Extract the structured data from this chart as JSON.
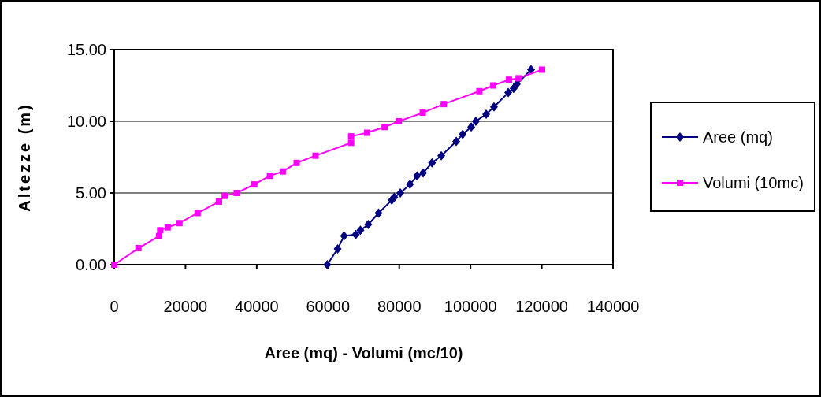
{
  "chart_data": {
    "type": "line",
    "xlabel": "Aree (mq) - Volumi (mc/10)",
    "ylabel": "Altezze (m)",
    "xlim": [
      0,
      140000
    ],
    "xticks": [
      0,
      20000,
      40000,
      60000,
      80000,
      100000,
      120000,
      140000
    ],
    "ylim": [
      0,
      15
    ],
    "yticks": [
      {
        "value": 0,
        "label": "0.00"
      },
      {
        "value": 5,
        "label": "5.00"
      },
      {
        "value": 10,
        "label": "10.00"
      },
      {
        "value": 15,
        "label": "15.00"
      }
    ],
    "grid": "y",
    "legend": "right",
    "series": [
      {
        "name": "Aree (mq)",
        "color": "#000080",
        "marker": "diamond",
        "x": [
          59800,
          62700,
          64500,
          67800,
          69100,
          71300,
          74200,
          77900,
          78600,
          80300,
          83000,
          85000,
          86700,
          89200,
          91800,
          96000,
          97800,
          100200,
          101500,
          104400,
          106600,
          110600,
          112100,
          113000,
          117000
        ],
        "values": [
          0,
          1.1,
          2.0,
          2.1,
          2.4,
          2.8,
          3.6,
          4.5,
          4.7,
          5.0,
          5.6,
          6.2,
          6.4,
          7.1,
          7.6,
          8.6,
          9.1,
          9.6,
          10.0,
          10.5,
          11.0,
          12.0,
          12.3,
          12.6,
          13.6
        ]
      },
      {
        "name": "Volumi (10mc)",
        "color": "#ff00ff",
        "marker": "square",
        "x": [
          0,
          6800,
          12600,
          12900,
          15000,
          18300,
          23400,
          29400,
          31000,
          34400,
          39300,
          43700,
          47300,
          51200,
          56500,
          66500,
          66500,
          71000,
          75900,
          79900,
          86600,
          92500,
          102500,
          106400,
          110800,
          113500,
          120100
        ],
        "values": [
          0,
          1.15,
          2.0,
          2.4,
          2.6,
          2.9,
          3.6,
          4.4,
          4.8,
          5.0,
          5.6,
          6.2,
          6.5,
          7.1,
          7.6,
          8.5,
          8.95,
          9.2,
          9.6,
          10.0,
          10.6,
          11.2,
          12.1,
          12.5,
          12.9,
          13.0,
          13.6
        ]
      }
    ]
  }
}
